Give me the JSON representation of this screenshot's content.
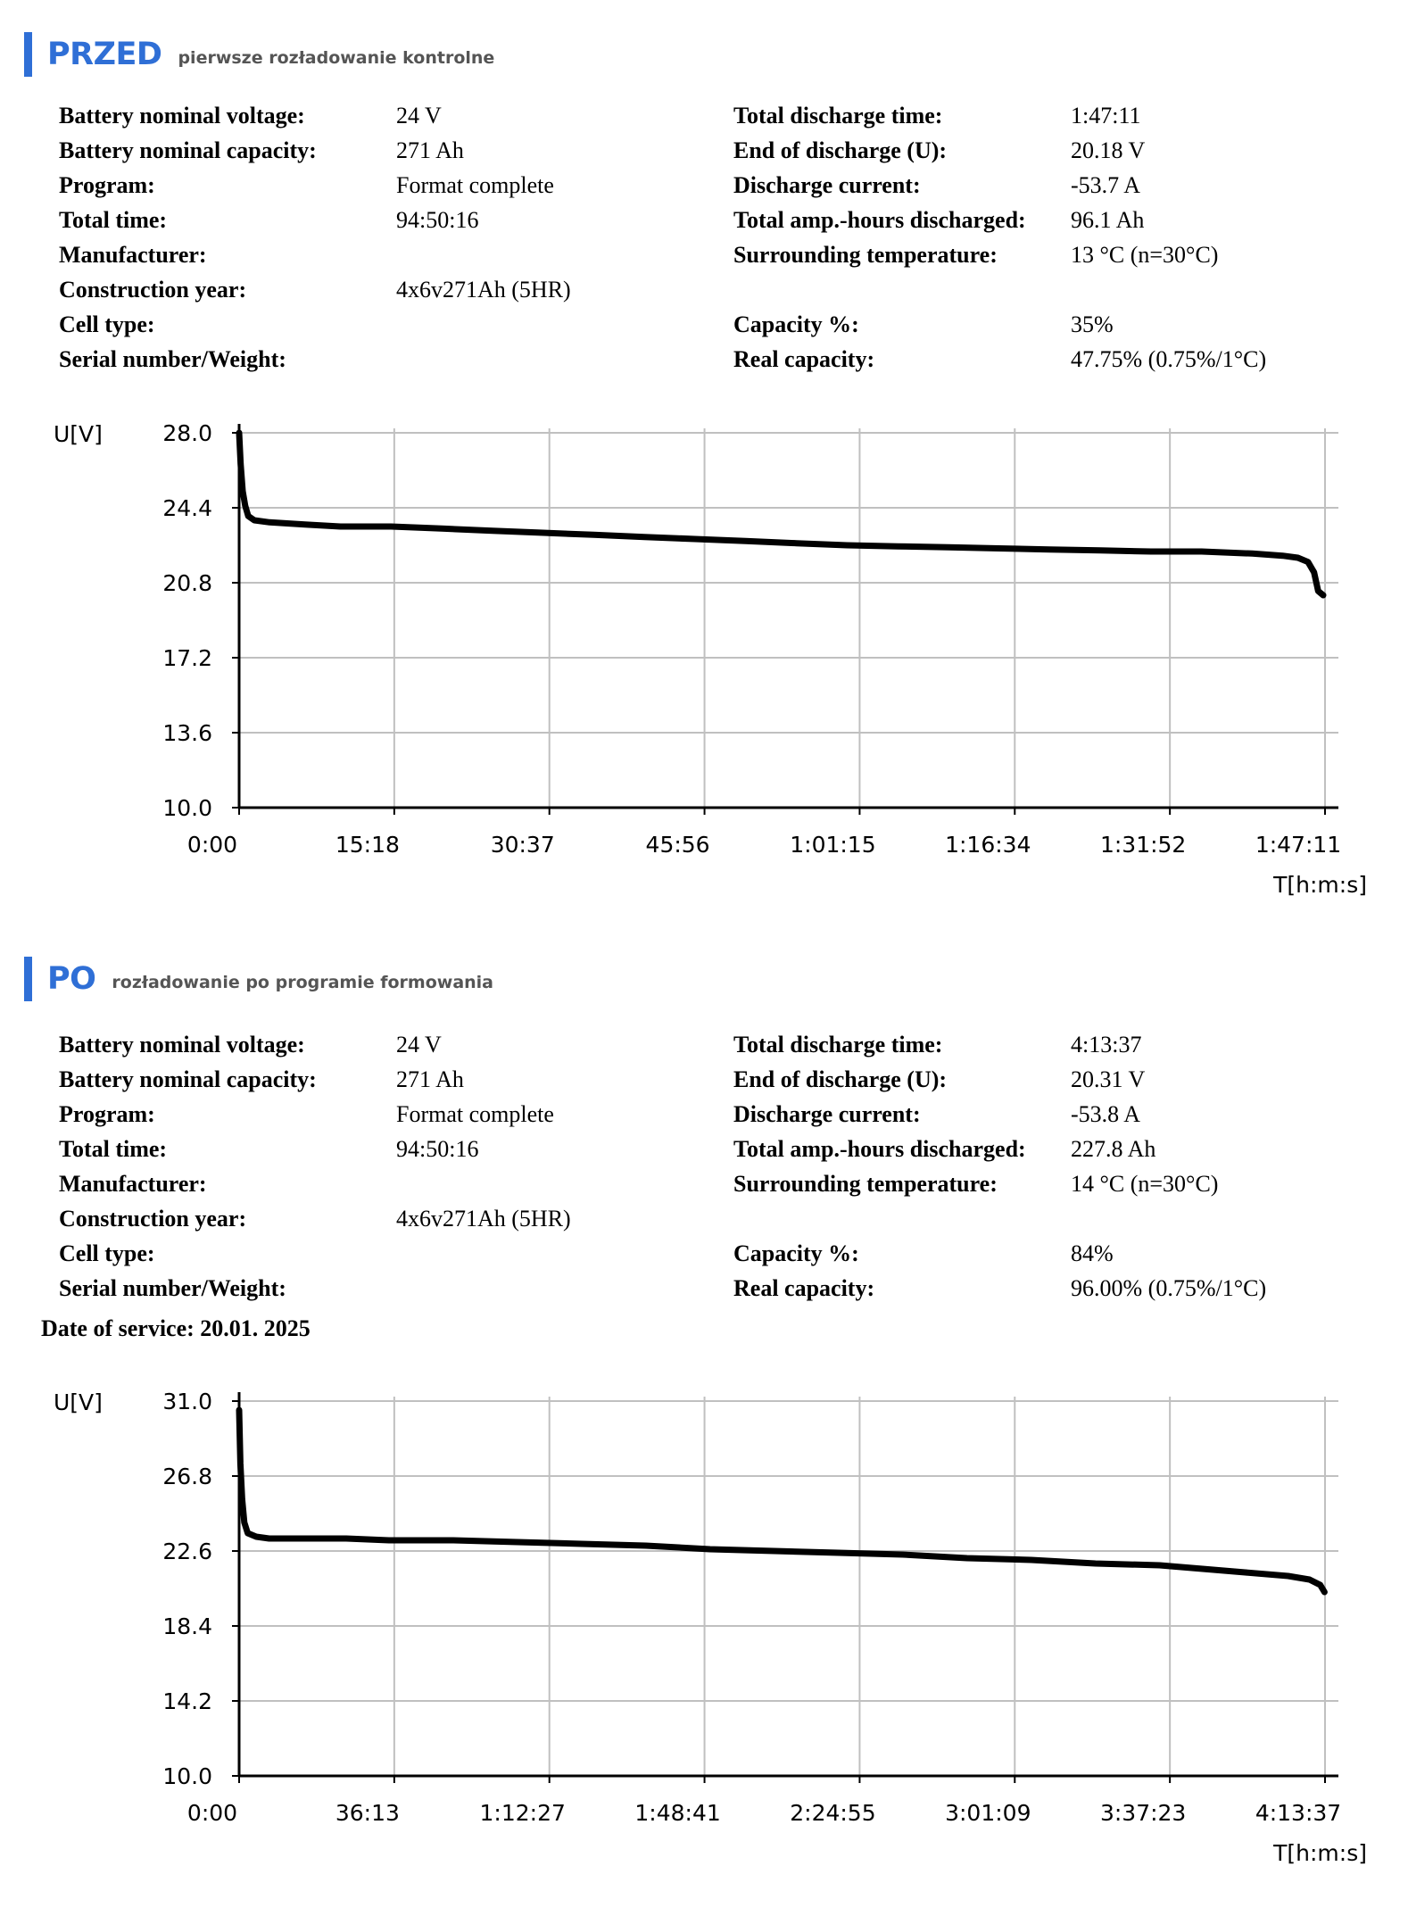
{
  "sections": [
    {
      "title": "PRZED",
      "subtitle": "pierwsze rozładowanie kontrolne",
      "left": [
        {
          "label": "Battery nominal voltage:",
          "value": "24 V"
        },
        {
          "label": "Battery nominal capacity:",
          "value": "271 Ah"
        },
        {
          "label": "Program:",
          "value": "Format complete"
        },
        {
          "label": "Total time:",
          "value": "94:50:16"
        },
        {
          "label": "Manufacturer:",
          "value": ""
        },
        {
          "label": "Construction year:",
          "value": "4x6v271Ah (5HR)"
        },
        {
          "label": "Cell type:",
          "value": ""
        },
        {
          "label": "Serial number/Weight:",
          "value": ""
        }
      ],
      "right": [
        {
          "label": "Total discharge time:",
          "value": "1:47:11"
        },
        {
          "label": "End of discharge (U):",
          "value": "20.18 V"
        },
        {
          "label": "Discharge current:",
          "value": "-53.7 A"
        },
        {
          "label": "Total amp.-hours discharged:",
          "value": "96.1 Ah"
        },
        {
          "label": "Surrounding temperature:",
          "value": "13 °C (n=30°C)"
        },
        {
          "label": "",
          "value": ""
        },
        {
          "label": "Capacity %:",
          "value": "35%"
        },
        {
          "label": "Real capacity:",
          "value": "47.75% (0.75%/1°C)"
        }
      ]
    },
    {
      "title": "PO",
      "subtitle": "rozładowanie po programie formowania",
      "left": [
        {
          "label": "Battery nominal voltage:",
          "value": "24 V"
        },
        {
          "label": "Battery nominal capacity:",
          "value": "271 Ah"
        },
        {
          "label": "Program:",
          "value": "Format complete"
        },
        {
          "label": "Total time:",
          "value": "94:50:16"
        },
        {
          "label": "Manufacturer:",
          "value": ""
        },
        {
          "label": "Construction year:",
          "value": "4x6v271Ah (5HR)"
        },
        {
          "label": "Cell type:",
          "value": ""
        },
        {
          "label": "Serial number/Weight:",
          "value": ""
        }
      ],
      "right": [
        {
          "label": "Total discharge time:",
          "value": "4:13:37"
        },
        {
          "label": "End of discharge (U):",
          "value": "20.31 V"
        },
        {
          "label": "Discharge current:",
          "value": "-53.8 A"
        },
        {
          "label": "Total amp.-hours discharged:",
          "value": "227.8 Ah"
        },
        {
          "label": "Surrounding temperature:",
          "value": "14 °C (n=30°C)"
        },
        {
          "label": "",
          "value": ""
        },
        {
          "label": "Capacity %:",
          "value": "84%"
        },
        {
          "label": "Real capacity:",
          "value": "96.00% (0.75%/1°C)"
        }
      ]
    }
  ],
  "date_of_service": "Date of service: 20.01. 2025",
  "chart_data": [
    {
      "type": "line",
      "ylabel": "U[V]",
      "xlabel": "T[h:m:s]",
      "ylim": [
        10.0,
        28.0
      ],
      "yticks": [
        "28.0",
        "24.4",
        "20.8",
        "17.2",
        "13.6",
        "10.0"
      ],
      "xticks": [
        "0:00",
        "15:18",
        "30:37",
        "45:56",
        "1:01:15",
        "1:16:34",
        "1:31:52",
        "1:47:11"
      ],
      "xlim": [
        0,
        107.18
      ],
      "grid": true,
      "series": [
        {
          "x": [
            0,
            0.15,
            0.35,
            0.6,
            0.9,
            1.5,
            3,
            6.5,
            10,
            15,
            20,
            25,
            30,
            35,
            40,
            45,
            50,
            55,
            60,
            65,
            70,
            75,
            80,
            85,
            90,
            95,
            100,
            103,
            104.5,
            105.5,
            106.1,
            106.5,
            107.0
          ],
          "y": [
            28.0,
            26.5,
            25.2,
            24.5,
            24.0,
            23.8,
            23.7,
            23.6,
            23.5,
            23.5,
            23.4,
            23.3,
            23.2,
            23.1,
            23.0,
            22.9,
            22.8,
            22.7,
            22.6,
            22.55,
            22.5,
            22.45,
            22.4,
            22.35,
            22.3,
            22.3,
            22.2,
            22.1,
            22.0,
            21.8,
            21.3,
            20.4,
            20.2
          ]
        }
      ]
    },
    {
      "type": "line",
      "ylabel": "U[V]",
      "xlabel": "T[h:m:s]",
      "ylim": [
        10.0,
        31.0
      ],
      "yticks": [
        "31.0",
        "26.8",
        "22.6",
        "18.4",
        "14.2",
        "10.0"
      ],
      "xticks": [
        "0:00",
        "36:13",
        "1:12:27",
        "1:48:41",
        "2:24:55",
        "3:01:09",
        "3:37:23",
        "4:13:37"
      ],
      "xlim": [
        0,
        253.62
      ],
      "grid": true,
      "series": [
        {
          "x": [
            0,
            0.3,
            0.7,
            1.2,
            2,
            4,
            7,
            15,
            25,
            35,
            50,
            65,
            80,
            95,
            110,
            125,
            140,
            155,
            170,
            185,
            200,
            215,
            225,
            235,
            245,
            250,
            252.5,
            253.5
          ],
          "y": [
            30.5,
            27.5,
            25.5,
            24.2,
            23.6,
            23.4,
            23.3,
            23.3,
            23.3,
            23.2,
            23.2,
            23.1,
            23.0,
            22.9,
            22.7,
            22.6,
            22.5,
            22.4,
            22.2,
            22.1,
            21.9,
            21.8,
            21.6,
            21.4,
            21.2,
            21.0,
            20.7,
            20.3
          ]
        }
      ]
    }
  ]
}
